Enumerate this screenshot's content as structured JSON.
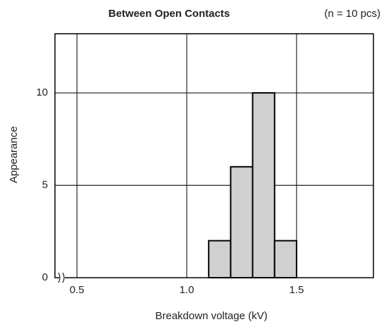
{
  "chart_data": {
    "type": "histogram",
    "title": "Between Open Contacts",
    "annotation": "(n = 10 pcs)",
    "x_label": "Breakdown voltage (kV)",
    "y_label": "Appearance",
    "bins": [
      1.1,
      1.2,
      1.3,
      1.4,
      1.5
    ],
    "values": [
      2,
      6,
      10,
      2
    ],
    "color": "#d0d0d0",
    "xlim": [
      0.4,
      1.85
    ],
    "xticks": [
      {
        "value": 0.5,
        "label": "0.5"
      },
      {
        "value": 1.0,
        "label": "1.0"
      },
      {
        "value": 1.5,
        "label": "1.5"
      }
    ],
    "ylim": [
      0,
      13.2
    ],
    "yticks": [
      0,
      5,
      10
    ],
    "grid": true
  }
}
